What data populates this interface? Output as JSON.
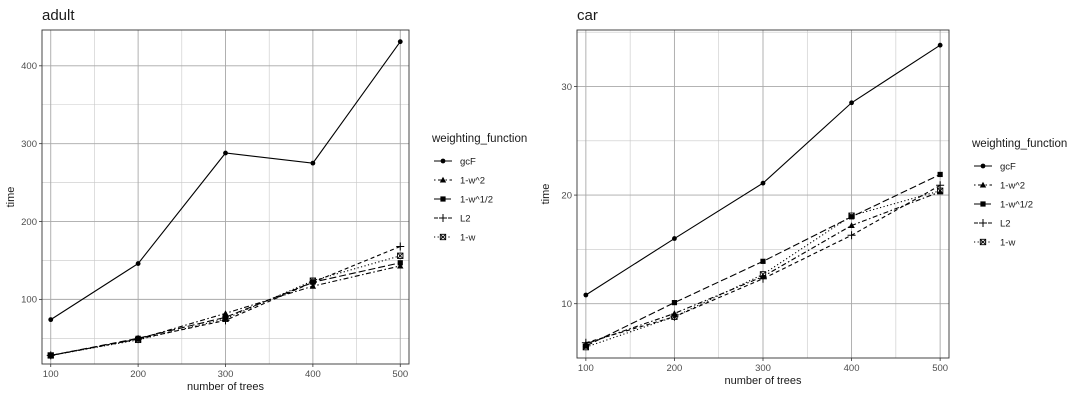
{
  "chart_data": [
    {
      "type": "line",
      "title": "adult",
      "xlabel": "number of trees",
      "ylabel": "time",
      "x": [
        100,
        200,
        300,
        400,
        500
      ],
      "xlim": [
        90,
        510
      ],
      "ylim": [
        17,
        446
      ],
      "xticks": [
        100,
        200,
        300,
        400,
        500
      ],
      "yticks": [
        100,
        200,
        300,
        400
      ],
      "grid": true,
      "legend_title": "weighting_function",
      "legend_position": "right",
      "series": [
        {
          "name": "gcF",
          "values": [
            74,
            146,
            288,
            275,
            431
          ],
          "marker": "circle",
          "dash": "solid"
        },
        {
          "name": "1-w^2",
          "values": [
            28,
            49,
            82,
            117,
            143
          ],
          "marker": "triangle",
          "dash": "dotdash"
        },
        {
          "name": "1-w^1/2",
          "values": [
            28,
            50,
            77,
            122,
            147
          ],
          "marker": "square",
          "dash": "longdash"
        },
        {
          "name": "L2",
          "values": [
            28,
            49,
            73,
            122,
            168
          ],
          "marker": "plus",
          "dash": "dashed"
        },
        {
          "name": "1-w",
          "values": [
            28,
            48,
            75,
            124,
            156
          ],
          "marker": "boxx",
          "dash": "dotted"
        }
      ]
    },
    {
      "type": "line",
      "title": "car",
      "xlabel": "number of trees",
      "ylabel": "time",
      "x": [
        100,
        200,
        300,
        400,
        500
      ],
      "xlim": [
        90,
        510
      ],
      "ylim": [
        5,
        35.2
      ],
      "xticks": [
        100,
        200,
        300,
        400,
        500
      ],
      "yticks": [
        10,
        20,
        30
      ],
      "grid": true,
      "legend_title": "weighting_function",
      "legend_position": "right",
      "series": [
        {
          "name": "gcF",
          "values": [
            10.8,
            16.0,
            21.1,
            28.5,
            33.8
          ],
          "marker": "circle",
          "dash": "solid"
        },
        {
          "name": "1-w^2",
          "values": [
            6.3,
            9.1,
            12.5,
            17.2,
            20.3
          ],
          "marker": "triangle",
          "dash": "dotdash"
        },
        {
          "name": "1-w^1/2",
          "values": [
            6.1,
            10.1,
            13.9,
            18.0,
            21.9
          ],
          "marker": "square",
          "dash": "longdash"
        },
        {
          "name": "L2",
          "values": [
            6.4,
            8.8,
            12.3,
            16.3,
            20.9
          ],
          "marker": "plus",
          "dash": "dashed"
        },
        {
          "name": "1-w",
          "values": [
            6.0,
            8.8,
            12.7,
            18.1,
            20.4
          ],
          "marker": "boxx",
          "dash": "dotted"
        }
      ]
    }
  ]
}
